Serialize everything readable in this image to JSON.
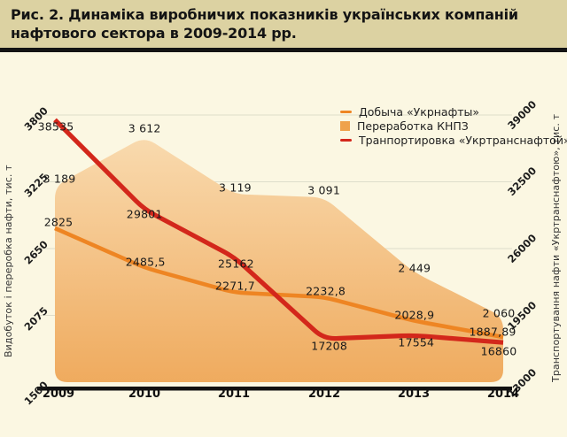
{
  "title": "Рис. 2. Динаміка виробничих показників українських компаній нафтового сектора в 2009-2014 рр.",
  "colors": {
    "title_bar_bg": "#dcd2a2",
    "chart_bg": "#fbf7e2",
    "area_top": "#f9dbb0",
    "area_bottom": "#efaa5d",
    "production_line": "#ee8523",
    "transport_line": "#d3271b",
    "grid": "#deddcb",
    "axis_line": "#111111",
    "label_text": "#191919"
  },
  "chart_data": {
    "type": "area",
    "subtype": "combo-area-and-lines",
    "x": [
      2009,
      2010,
      2011,
      2012,
      2013,
      2014
    ],
    "x_tick_labels": [
      "2009",
      "2010",
      "2011",
      "2012",
      "2013",
      "2014"
    ],
    "series": [
      {
        "name": "Добыча «Укрнафты»",
        "type": "line",
        "axis": "left",
        "color": "#ee8523",
        "values": [
          2825,
          2485.5,
          2271.7,
          2232.8,
          2028.9,
          1887.89
        ],
        "point_labels": [
          "2825",
          "2485,5",
          "2271,7",
          "2232,8",
          "2028,9",
          "1887,89"
        ]
      },
      {
        "name": "Переработка КНПЗ",
        "type": "area",
        "axis": "left",
        "color": "#efa24c",
        "values": [
          3189,
          3612,
          3119,
          3091,
          2449,
          2060
        ],
        "point_labels": [
          "3 189",
          "3 612",
          "3 119",
          "3 091",
          "2 449",
          "2 060"
        ]
      },
      {
        "name": "Транпортировка «Укртранснафтой»",
        "type": "line",
        "axis": "right",
        "color": "#d3271b",
        "values": [
          38535,
          29801,
          25162,
          17208,
          17554,
          16860
        ],
        "point_labels": [
          "38535",
          "29801",
          "25162",
          "17208",
          "17554",
          "16860"
        ]
      }
    ],
    "left_axis": {
      "label": "Видобуток і переробка нафти, тис. т",
      "min": 1500,
      "max": 3800,
      "ticks": [
        3800,
        3225,
        2650,
        2075,
        1500
      ]
    },
    "right_axis": {
      "label": "Транспортування нафти «Укртранснафтою», тис. т",
      "min": 13000,
      "max": 39000,
      "ticks": [
        39000,
        32500,
        26000,
        19500,
        13000
      ]
    },
    "legend_position": "top-right",
    "grid": "horizontal"
  }
}
